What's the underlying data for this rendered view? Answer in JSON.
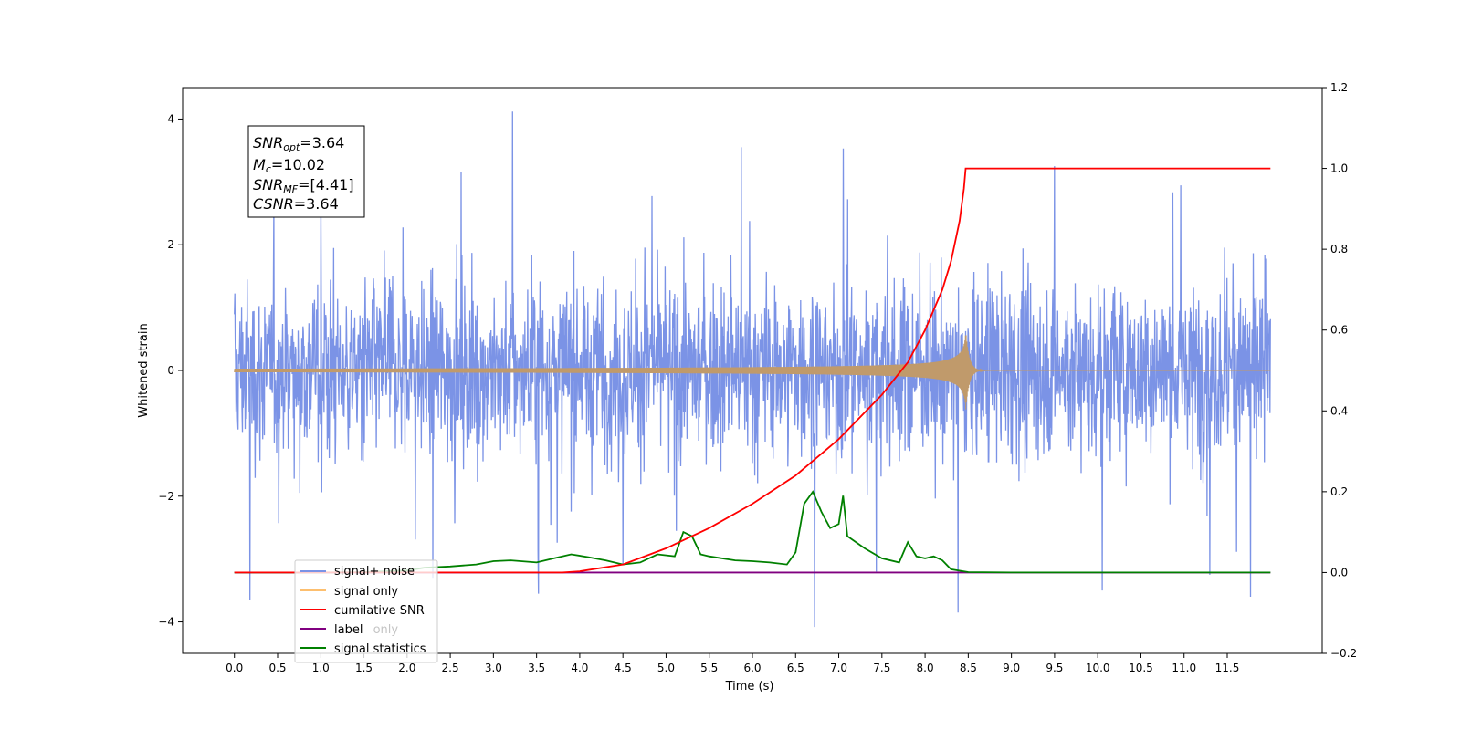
{
  "chart_data": {
    "type": "line",
    "xlabel": "Time (s)",
    "ylabel": "Whitened strain",
    "xlim": [
      -0.6,
      12.6
    ],
    "ylim": [
      -4.5,
      4.5
    ],
    "y2lim": [
      -0.2,
      1.2
    ],
    "x_ticks": [
      "0.0",
      "0.5",
      "1.0",
      "1.5",
      "2.0",
      "2.5",
      "3.0",
      "3.5",
      "4.0",
      "4.5",
      "5.0",
      "5.5",
      "6.0",
      "6.5",
      "7.0",
      "7.5",
      "8.0",
      "8.5",
      "9.0",
      "9.5",
      "10.0",
      "10.5",
      "11.0",
      "11.5"
    ],
    "y_ticks": [
      -4,
      -2,
      0,
      2,
      4
    ],
    "y_tick_labels": [
      "−4",
      "−2",
      "0",
      "2",
      "4"
    ],
    "y2_ticks": [
      "−0.2",
      "0.0",
      "0.2",
      "0.4",
      "0.6",
      "0.8",
      "1.0",
      "1.2"
    ],
    "annotation": {
      "snr_opt": "=3.64",
      "mc": "=10.02",
      "snr_mf": "=[4.41]",
      "csnr": "=3.64"
    },
    "legend": {
      "position": "lower-left",
      "entries": [
        "signal+ noise",
        "signal only",
        "cumilative SNR",
        "label",
        "signal statistics"
      ],
      "hidden_entry": "signal only"
    },
    "colors": {
      "signal_noise": "#7b93e6",
      "signal_only": "#fdbf6f",
      "signal_only_overlap": "#c09a6b",
      "cumulative_snr": "#ff0000",
      "label": "#800080",
      "signal_statistics": "#008000"
    },
    "series": [
      {
        "name": "signal+ noise",
        "axis": "left",
        "description_values": {
          "t_start": 0.0,
          "t_end": 12.0,
          "typical_amplitude": 1.5,
          "min": -4.08,
          "max": 4.12
        },
        "spikes": [
          [
            0.18,
            -3.65
          ],
          [
            1.0,
            2.7
          ],
          [
            3.22,
            4.12
          ],
          [
            5.87,
            3.55
          ],
          [
            6.72,
            -4.08
          ],
          [
            7.05,
            3.53
          ],
          [
            8.38,
            -3.85
          ],
          [
            3.52,
            -3.55
          ],
          [
            11.77,
            -3.6
          ],
          [
            10.05,
            -3.5
          ],
          [
            9.5,
            3.25
          ],
          [
            11.3,
            -3.25
          ],
          [
            4.5,
            -3.1
          ],
          [
            2.3,
            -3.3
          ]
        ]
      },
      {
        "name": "signal only",
        "axis": "left",
        "chirp": {
          "t_start": 0.0,
          "t_merger": 8.47,
          "peak_amplitude": 0.65
        }
      },
      {
        "name": "cumilative SNR",
        "axis": "right",
        "x": [
          0,
          3.8,
          4.0,
          4.5,
          5.0,
          5.5,
          6.0,
          6.5,
          7.0,
          7.5,
          7.8,
          8.0,
          8.2,
          8.3,
          8.4,
          8.45,
          8.47,
          9.0,
          10.0,
          11.0,
          12.0
        ],
        "y": [
          0.0,
          0.0,
          0.003,
          0.02,
          0.06,
          0.11,
          0.17,
          0.24,
          0.33,
          0.44,
          0.52,
          0.6,
          0.7,
          0.77,
          0.87,
          0.95,
          1.0,
          1.0,
          1.0,
          1.0,
          1.0
        ]
      },
      {
        "name": "label",
        "axis": "right",
        "x": [
          0.0,
          12.0
        ],
        "y": [
          0.0,
          0.0
        ]
      },
      {
        "name": "signal statistics",
        "axis": "right",
        "x": [
          0.0,
          1.0,
          1.5,
          2.0,
          2.2,
          2.5,
          2.8,
          3.0,
          3.2,
          3.5,
          3.7,
          3.9,
          4.1,
          4.3,
          4.5,
          4.7,
          4.9,
          5.1,
          5.2,
          5.3,
          5.4,
          5.5,
          5.8,
          6.0,
          6.2,
          6.4,
          6.5,
          6.6,
          6.7,
          6.8,
          6.9,
          7.0,
          7.05,
          7.1,
          7.3,
          7.5,
          7.7,
          7.8,
          7.9,
          8.0,
          8.1,
          8.2,
          8.3,
          8.5,
          9.0,
          10.0,
          11.0,
          12.0
        ],
        "y": [
          0.0,
          0.0,
          0.001,
          0.005,
          0.012,
          0.015,
          0.02,
          0.028,
          0.03,
          0.025,
          0.035,
          0.045,
          0.038,
          0.03,
          0.02,
          0.025,
          0.045,
          0.04,
          0.1,
          0.09,
          0.045,
          0.04,
          0.03,
          0.028,
          0.025,
          0.02,
          0.05,
          0.17,
          0.2,
          0.15,
          0.11,
          0.12,
          0.19,
          0.09,
          0.06,
          0.035,
          0.025,
          0.075,
          0.04,
          0.035,
          0.04,
          0.03,
          0.008,
          0.001,
          0.0,
          0.0,
          0.0,
          0.0
        ]
      }
    ]
  }
}
